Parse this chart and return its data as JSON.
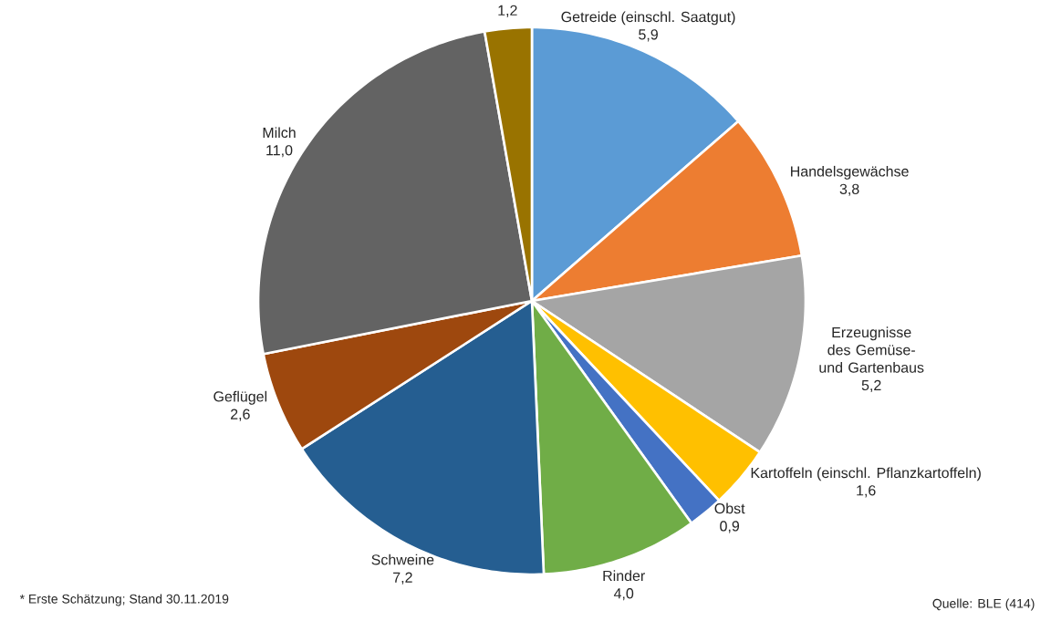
{
  "chart_data": {
    "type": "pie",
    "categories": [
      "Getreide (einschl. Saatgut)",
      "Handelsgewächse",
      "Erzeugnisse des Gemüse- und Gartenbaus",
      "Kartoffeln (einschl. Pflanzkartoffeln)",
      "Obst",
      "Rinder",
      "Schweine",
      "Geflügel",
      "Milch",
      null
    ],
    "values": [
      5.9,
      3.8,
      5.2,
      1.6,
      0.9,
      4.0,
      7.2,
      2.6,
      11.0,
      1.2
    ],
    "value_labels": [
      "5,9",
      "3,8",
      "5,2",
      "1,6",
      "0,9",
      "4,0",
      "7,2",
      "2,6",
      "11,0",
      "1,2"
    ],
    "colors": [
      "#5b9bd5",
      "#ed7d31",
      "#a5a5a5",
      "#ffc000",
      "#4472c4",
      "#70ad47",
      "#255e91",
      "#9e480e",
      "#636363",
      "#997300"
    ],
    "annotations": [
      "* Erste Schätzung; Stand 30.11.2019",
      "Quelle: BLE (414)"
    ]
  }
}
